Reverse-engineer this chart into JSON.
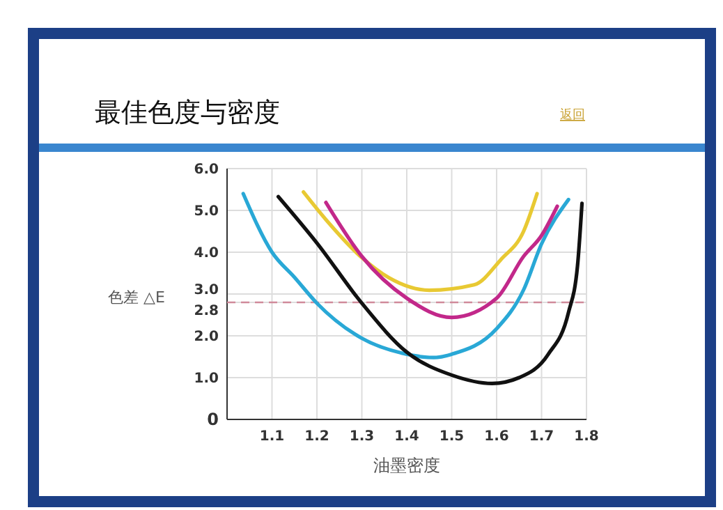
{
  "chart_data": {
    "type": "line",
    "title": "最佳色度与密度",
    "xlabel": "油墨密度",
    "ylabel": "色差 △E",
    "annotations": [
      "返回"
    ],
    "xlim": [
      1.0,
      1.8
    ],
    "xticks": [
      1.1,
      1.2,
      1.3,
      1.4,
      1.5,
      1.6,
      1.7,
      1.8
    ],
    "ylim": [
      0,
      6.0
    ],
    "yticks": [
      {
        "value": 0,
        "label": "0"
      },
      {
        "value": 1,
        "label": "1.0"
      },
      {
        "value": 2,
        "label": "2.0"
      },
      {
        "value": 2.8,
        "label": "2.8"
      },
      {
        "value": 3,
        "label": "3.0"
      },
      {
        "value": 4,
        "label": "4.0"
      },
      {
        "value": 5,
        "label": "5.0"
      },
      {
        "value": 6,
        "label": "6.0"
      }
    ],
    "grid": true,
    "marker": "none",
    "line_style": "solid",
    "ref_lines": [
      {
        "axis": "y",
        "value": 2.8,
        "color": "#d08a9a",
        "line_style": "dashed"
      }
    ],
    "series": [
      {
        "color": "#29a8d6",
        "x": [
          1.036,
          1.1,
          1.15,
          1.2,
          1.3,
          1.4,
          1.46,
          1.5,
          1.6,
          1.66,
          1.7,
          1.76
        ],
        "values": [
          5.4,
          4.0,
          3.4,
          2.78,
          1.94,
          1.56,
          1.48,
          1.56,
          2.17,
          3.1,
          4.2,
          5.26
        ]
      },
      {
        "color": "#111111",
        "x": [
          1.114,
          1.2,
          1.3,
          1.4,
          1.5,
          1.59,
          1.65,
          1.715,
          1.76,
          1.78,
          1.79
        ],
        "values": [
          5.33,
          4.22,
          2.78,
          1.61,
          1.06,
          0.86,
          1.0,
          1.56,
          2.56,
          3.67,
          5.17
        ]
      },
      {
        "color": "#e8c933",
        "x": [
          1.17,
          1.22,
          1.3,
          1.36,
          1.45,
          1.55,
          1.61,
          1.66,
          1.69
        ],
        "values": [
          5.44,
          4.78,
          3.87,
          3.39,
          3.09,
          3.22,
          3.83,
          4.5,
          5.4
        ]
      },
      {
        "color": "#c2288a",
        "x": [
          1.22,
          1.3,
          1.4,
          1.5,
          1.6,
          1.66,
          1.7,
          1.735
        ],
        "values": [
          5.19,
          3.9,
          2.9,
          2.44,
          2.9,
          3.9,
          4.4,
          5.1
        ]
      }
    ]
  }
}
